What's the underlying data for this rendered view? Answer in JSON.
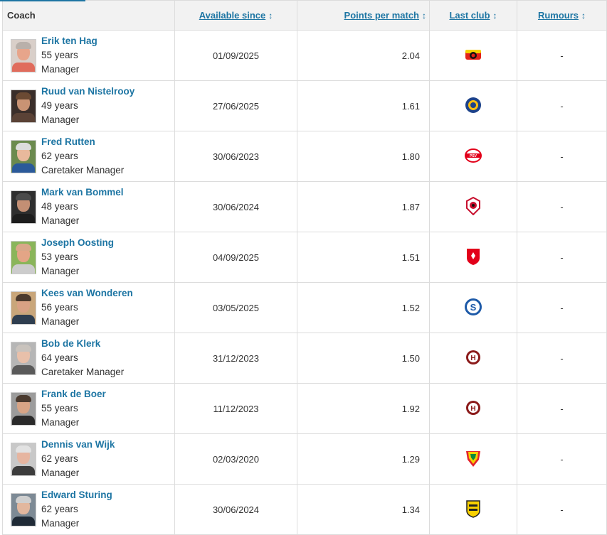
{
  "headers": {
    "coach": "Coach",
    "available_since": "Available since",
    "points_per_match": "Points per match",
    "last_club": "Last club",
    "rumours": "Rumours",
    "sort_icon": "↕"
  },
  "colors": {
    "link": "#1d75a3",
    "header_bg": "#f2f2f2",
    "border": "#dcdcdc"
  },
  "rows": [
    {
      "name": "Erik ten Hag",
      "age": "55 years",
      "role": "Manager",
      "available": "01/09/2025",
      "ppm": "2.04",
      "club_icon": "bayer-leverkusen-crest-icon",
      "rumours": "-"
    },
    {
      "name": "Ruud van Nistelrooy",
      "age": "49 years",
      "role": "Manager",
      "available": "27/06/2025",
      "ppm": "1.61",
      "club_icon": "leicester-city-crest-icon",
      "rumours": "-"
    },
    {
      "name": "Fred Rutten",
      "age": "62 years",
      "role": "Caretaker Manager",
      "available": "30/06/2023",
      "ppm": "1.80",
      "club_icon": "psv-crest-icon",
      "rumours": "-"
    },
    {
      "name": "Mark van Bommel",
      "age": "48 years",
      "role": "Manager",
      "available": "30/06/2024",
      "ppm": "1.87",
      "club_icon": "royal-antwerp-crest-icon",
      "rumours": "-"
    },
    {
      "name": "Joseph Oosting",
      "age": "53 years",
      "role": "Manager",
      "available": "04/09/2025",
      "ppm": "1.51",
      "club_icon": "fc-twente-crest-icon",
      "rumours": "-"
    },
    {
      "name": "Kees van Wonderen",
      "age": "56 years",
      "role": "Manager",
      "available": "03/05/2025",
      "ppm": "1.52",
      "club_icon": "schalke-crest-icon",
      "rumours": "-"
    },
    {
      "name": "Bob de Klerk",
      "age": "64 years",
      "role": "Caretaker Manager",
      "available": "31/12/2023",
      "ppm": "1.50",
      "club_icon": "hfc-haarlem-crest-icon",
      "rumours": "-"
    },
    {
      "name": "Frank de Boer",
      "age": "55 years",
      "role": "Manager",
      "available": "11/12/2023",
      "ppm": "1.92",
      "club_icon": "hfc-haarlem-crest-icon",
      "rumours": "-"
    },
    {
      "name": "Dennis van Wijk",
      "age": "62 years",
      "role": "Manager",
      "available": "02/03/2020",
      "ppm": "1.29",
      "club_icon": "kv-oostende-crest-icon",
      "rumours": "-"
    },
    {
      "name": "Edward Sturing",
      "age": "62 years",
      "role": "Manager",
      "available": "30/06/2024",
      "ppm": "1.34",
      "club_icon": "vitesse-crest-icon",
      "rumours": "-"
    }
  ]
}
